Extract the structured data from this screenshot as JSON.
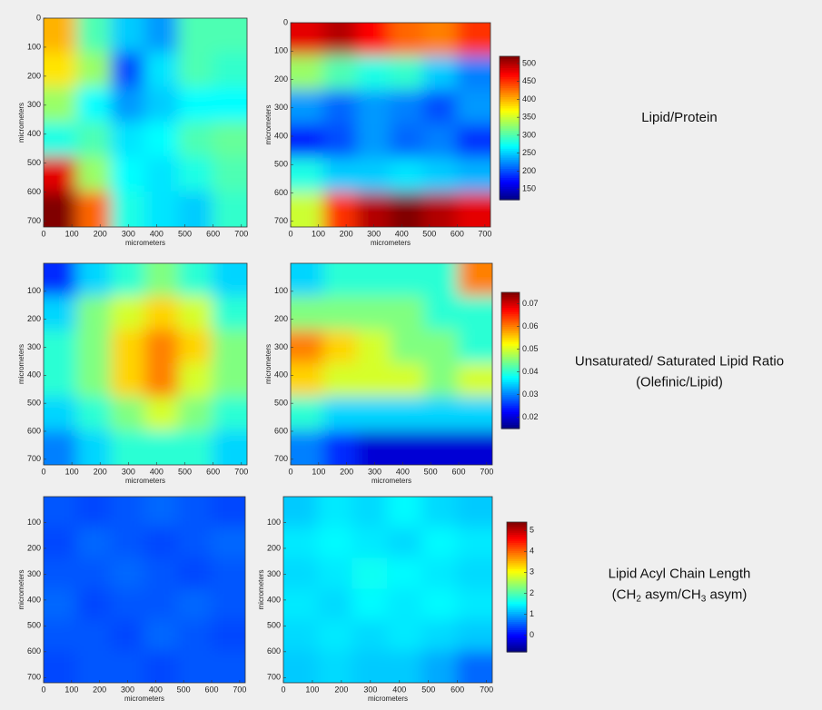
{
  "panels": [
    {
      "label": [
        [
          {
            "text": "Lipid/Protein"
          }
        ]
      ],
      "colorbar": {
        "clim": [
          120,
          520
        ],
        "ticks": [
          150,
          200,
          250,
          300,
          350,
          400,
          450,
          500
        ]
      },
      "maps": [
        {
          "xlim": [
            0,
            720
          ],
          "ylim": [
            0,
            720
          ],
          "xticks": [
            0,
            100,
            200,
            300,
            400,
            500,
            600,
            700
          ],
          "yticks": [
            0,
            100,
            200,
            300,
            400,
            500,
            600,
            700
          ],
          "xlabel": "micrometers",
          "ylabel": "micrometers",
          "grid": [
            [
              400,
              300,
              250,
              230,
              300,
              300
            ],
            [
              380,
              330,
              200,
              260,
              300,
              290
            ],
            [
              330,
              270,
              230,
              250,
              270,
              270
            ],
            [
              280,
              300,
              260,
              270,
              300,
              310
            ],
            [
              480,
              330,
              270,
              260,
              280,
              300
            ],
            [
              520,
              430,
              280,
              260,
              250,
              290
            ]
          ]
        },
        {
          "xlim": [
            0,
            720
          ],
          "ylim": [
            0,
            720
          ],
          "xticks": [
            0,
            100,
            200,
            300,
            400,
            500,
            600,
            700
          ],
          "yticks": [
            0,
            100,
            200,
            300,
            400,
            500,
            600,
            700
          ],
          "xlabel": "micrometers",
          "ylabel": "micrometers",
          "grid": [
            [
              480,
              500,
              470,
              430,
              420,
              450
            ],
            [
              330,
              300,
              280,
              290,
              250,
              220
            ],
            [
              230,
              210,
              230,
              220,
              200,
              230
            ],
            [
              180,
              200,
              230,
              210,
              220,
              190
            ],
            [
              280,
              250,
              250,
              260,
              250,
              240
            ],
            [
              350,
              450,
              500,
              520,
              500,
              480
            ]
          ]
        }
      ]
    },
    {
      "label": [
        [
          {
            "text": "Unsaturated/ Saturated Lipid Ratio"
          }
        ],
        [
          {
            "text": "(Olefinic/Lipid)"
          }
        ]
      ],
      "colorbar": {
        "clim": [
          0.015,
          0.075
        ],
        "ticks": [
          0.02,
          0.03,
          0.04,
          0.05,
          0.06,
          0.07
        ]
      },
      "maps": [
        {
          "xlim": [
            0,
            720
          ],
          "ylim": [
            0,
            720
          ],
          "xticks": [
            0,
            100,
            200,
            300,
            400,
            500,
            600,
            700
          ],
          "yticks": [
            100,
            200,
            300,
            400,
            500,
            600,
            700
          ],
          "xlabel": "micrometers",
          "ylabel": "micrometers",
          "grid": [
            [
              0.025,
              0.035,
              0.04,
              0.045,
              0.04,
              0.035
            ],
            [
              0.035,
              0.045,
              0.05,
              0.055,
              0.05,
              0.04
            ],
            [
              0.04,
              0.045,
              0.055,
              0.06,
              0.055,
              0.045
            ],
            [
              0.04,
              0.045,
              0.055,
              0.06,
              0.05,
              0.045
            ],
            [
              0.035,
              0.04,
              0.045,
              0.05,
              0.045,
              0.04
            ],
            [
              0.03,
              0.035,
              0.04,
              0.04,
              0.04,
              0.035
            ]
          ]
        },
        {
          "xlim": [
            0,
            720
          ],
          "ylim": [
            0,
            720
          ],
          "xticks": [
            0,
            100,
            200,
            300,
            400,
            500,
            600,
            700
          ],
          "yticks": [
            100,
            200,
            300,
            400,
            500,
            600,
            700
          ],
          "xlabel": "micrometers",
          "ylabel": "micrometers",
          "grid": [
            [
              0.035,
              0.04,
              0.04,
              0.04,
              0.04,
              0.06
            ],
            [
              0.045,
              0.045,
              0.045,
              0.045,
              0.04,
              0.04
            ],
            [
              0.06,
              0.055,
              0.05,
              0.045,
              0.045,
              0.04
            ],
            [
              0.055,
              0.05,
              0.05,
              0.05,
              0.045,
              0.05
            ],
            [
              0.04,
              0.035,
              0.035,
              0.035,
              0.035,
              0.035
            ],
            [
              0.03,
              0.025,
              0.02,
              0.02,
              0.02,
              0.02
            ]
          ]
        }
      ]
    },
    {
      "label": [
        [
          {
            "text": "Lipid Acyl Chain Length"
          }
        ],
        [
          {
            "text": "(CH"
          },
          {
            "text": "2",
            "sub": true
          },
          {
            "text": " asym/CH"
          },
          {
            "text": "3",
            "sub": true
          },
          {
            "text": " asym)"
          }
        ]
      ],
      "colorbar": {
        "clim": [
          -0.8,
          5.4
        ],
        "ticks": [
          0,
          1,
          2,
          3,
          4,
          5
        ]
      },
      "maps": [
        {
          "xlim": [
            0,
            720
          ],
          "ylim": [
            0,
            720
          ],
          "xticks": [
            0,
            100,
            200,
            300,
            400,
            500,
            600,
            700
          ],
          "yticks": [
            100,
            200,
            300,
            400,
            500,
            600,
            700
          ],
          "xlabel": "micrometers",
          "ylabel": "micrometers",
          "grid": [
            [
              0.5,
              0.4,
              0.5,
              0.6,
              0.5,
              0.4
            ],
            [
              0.4,
              0.6,
              0.5,
              0.4,
              0.5,
              0.6
            ],
            [
              0.5,
              0.5,
              0.6,
              0.5,
              0.4,
              0.5
            ],
            [
              0.6,
              0.4,
              0.5,
              0.5,
              0.6,
              0.5
            ],
            [
              0.5,
              0.5,
              0.4,
              0.6,
              0.5,
              0.4
            ],
            [
              0.4,
              0.5,
              0.5,
              0.4,
              0.5,
              0.5
            ]
          ]
        },
        {
          "xlim": [
            0,
            720
          ],
          "ylim": [
            0,
            720
          ],
          "xticks": [
            0,
            100,
            200,
            300,
            400,
            500,
            600,
            700
          ],
          "yticks": [
            100,
            200,
            300,
            400,
            500,
            600,
            700
          ],
          "xlabel": "micrometers",
          "ylabel": "micrometers",
          "grid": [
            [
              1.2,
              1.4,
              1.3,
              1.5,
              1.3,
              1.2
            ],
            [
              1.4,
              1.5,
              1.4,
              1.3,
              1.5,
              1.4
            ],
            [
              1.3,
              1.4,
              1.6,
              1.5,
              1.4,
              1.3
            ],
            [
              1.4,
              1.3,
              1.5,
              1.4,
              1.5,
              1.4
            ],
            [
              1.3,
              1.4,
              1.3,
              1.4,
              1.3,
              1.2
            ],
            [
              1.2,
              1.3,
              1.2,
              1.2,
              1.0,
              0.6
            ]
          ]
        }
      ]
    }
  ]
}
